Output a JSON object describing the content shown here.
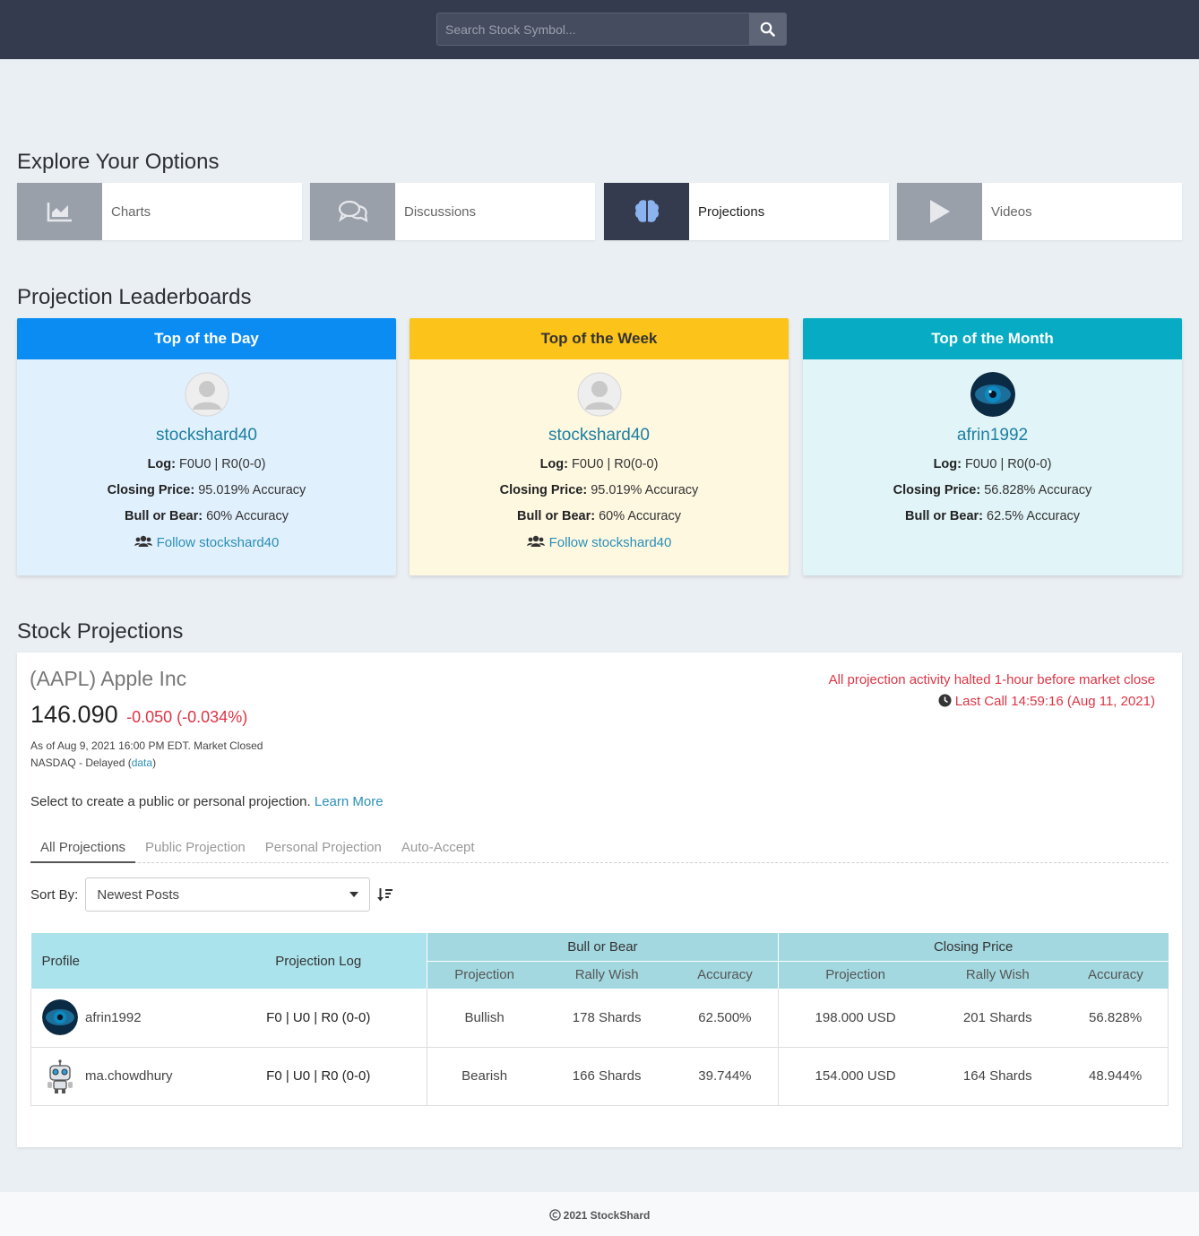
{
  "search": {
    "placeholder": "Search Stock Symbol..."
  },
  "explore": {
    "title": "Explore Your Options",
    "tiles": [
      {
        "label": "Charts",
        "icon": "chart-area-icon"
      },
      {
        "label": "Discussions",
        "icon": "comments-icon"
      },
      {
        "label": "Projections",
        "icon": "brain-icon"
      },
      {
        "label": "Videos",
        "icon": "play-icon"
      }
    ],
    "active": "Projections"
  },
  "leaderboards": {
    "title": "Projection Leaderboards",
    "cards": [
      {
        "heading": "Top of the Day",
        "color": "#0a8cf2",
        "bg": "#e1f0fd",
        "user": "stockshard40",
        "log_label": "Log:",
        "log": "F0U0 | R0(0-0)",
        "closing_label": "Closing Price:",
        "closing": "95.019% Accuracy",
        "bull_label": "Bull or Bear:",
        "bull": "60% Accuracy",
        "follow": "Follow stockshard40"
      },
      {
        "heading": "Top of the Week",
        "color": "#fcc31a",
        "bg": "#fef8e1",
        "user": "stockshard40",
        "log_label": "Log:",
        "log": "F0U0 | R0(0-0)",
        "closing_label": "Closing Price:",
        "closing": "95.019% Accuracy",
        "bull_label": "Bull or Bear:",
        "bull": "60% Accuracy",
        "follow": "Follow stockshard40"
      },
      {
        "heading": "Top of the Month",
        "color": "#07acc4",
        "bg": "#e1f4f7",
        "user": "afrin1992",
        "log_label": "Log:",
        "log": "F0U0 | R0(0-0)",
        "closing_label": "Closing Price:",
        "closing": "56.828% Accuracy",
        "bull_label": "Bull or Bear:",
        "bull": "62.5% Accuracy"
      }
    ]
  },
  "stock": {
    "section_title": "Stock Projections",
    "name": "(AAPL) Apple Inc",
    "price": "146.090",
    "change": "-0.050 (-0.034%)",
    "as_of": "As of Aug 9, 2021 16:00 PM EDT. Market Closed",
    "exchange": "NASDAQ - Delayed (",
    "data_link": "data",
    "exchange_end": ")",
    "halt_notice": "All projection activity halted 1-hour before market close",
    "last_call": "Last Call 14:59:16 (Aug 11, 2021)",
    "prompt": "Select to create a public or personal projection.",
    "learn_more": "Learn More",
    "tabs": [
      "All Projections",
      "Public Projection",
      "Personal Projection",
      "Auto-Accept"
    ],
    "sort_label": "Sort By:",
    "sort_value": "Newest Posts"
  },
  "table": {
    "headers": {
      "profile": "Profile",
      "log": "Projection Log",
      "bull_group": "Bull or Bear",
      "closing_group": "Closing Price",
      "projection": "Projection",
      "rally": "Rally Wish",
      "accuracy": "Accuracy"
    },
    "rows": [
      {
        "user": "afrin1992",
        "log": "F0 | U0 | R0 (0-0)",
        "bb_projection": "Bullish",
        "bb_rally": "178 Shards",
        "bb_accuracy": "62.500%",
        "cp_projection": "198.000 USD",
        "cp_rally": "201 Shards",
        "cp_accuracy": "56.828%"
      },
      {
        "user": "ma.chowdhury",
        "log": "F0 | U0 | R0 (0-0)",
        "bb_projection": "Bearish",
        "bb_rally": "166 Shards",
        "bb_accuracy": "39.744%",
        "cp_projection": "154.000 USD",
        "cp_rally": "164 Shards",
        "cp_accuracy": "48.944%"
      }
    ]
  },
  "footer": {
    "text": "2021 StockShard"
  }
}
